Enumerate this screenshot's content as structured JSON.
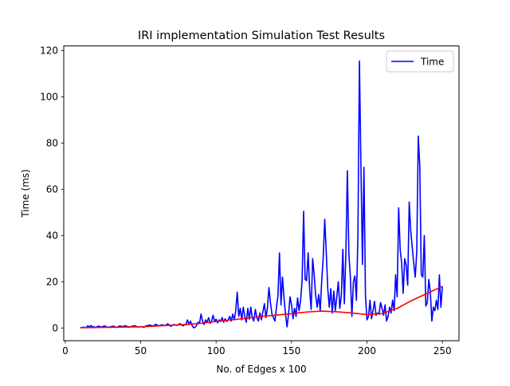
{
  "chart_data": {
    "type": "line",
    "title": "IRI implementation Simulation Test Results",
    "xlabel": "No. of Edges  x 100",
    "ylabel": "Time (ms)",
    "xlim": [
      -1,
      261
    ],
    "ylim": [
      -5.5,
      122
    ],
    "xticks": [
      0,
      50,
      100,
      150,
      200,
      250
    ],
    "yticks": [
      0,
      20,
      40,
      60,
      80,
      100,
      120
    ],
    "grid": false,
    "legend": {
      "placement": "top-right",
      "entries": [
        "Time"
      ]
    },
    "series": [
      {
        "name": "Time",
        "color": "#0000ff",
        "points": [
          [
            10,
            0.1
          ],
          [
            12,
            0.3
          ],
          [
            14,
            0.2
          ],
          [
            15,
            1.0
          ],
          [
            16,
            0.3
          ],
          [
            17,
            1.1
          ],
          [
            18,
            0.4
          ],
          [
            19,
            0.6
          ],
          [
            20,
            0.2
          ],
          [
            22,
            0.8
          ],
          [
            24,
            0.4
          ],
          [
            26,
            0.9
          ],
          [
            28,
            0.3
          ],
          [
            30,
            0.5
          ],
          [
            32,
            0.8
          ],
          [
            34,
            0.2
          ],
          [
            36,
            0.9
          ],
          [
            38,
            0.6
          ],
          [
            40,
            1.0
          ],
          [
            42,
            0.3
          ],
          [
            44,
            0.7
          ],
          [
            46,
            1.0
          ],
          [
            48,
            0.4
          ],
          [
            50,
            0.6
          ],
          [
            52,
            0.3
          ],
          [
            54,
            1.0
          ],
          [
            56,
            1.3
          ],
          [
            58,
            0.8
          ],
          [
            60,
            1.6
          ],
          [
            62,
            0.9
          ],
          [
            64,
            1.4
          ],
          [
            66,
            1.0
          ],
          [
            68,
            1.8
          ],
          [
            70,
            0.7
          ],
          [
            72,
            1.5
          ],
          [
            74,
            1.1
          ],
          [
            76,
            1.9
          ],
          [
            78,
            0.9
          ],
          [
            80,
            1.7
          ],
          [
            81,
            3.5
          ],
          [
            82,
            1.5
          ],
          [
            83,
            3.0
          ],
          [
            84,
            1.2
          ],
          [
            85,
            0.1
          ],
          [
            86,
            0.3
          ],
          [
            87,
            1.0
          ],
          [
            88,
            2.5
          ],
          [
            89,
            2.0
          ],
          [
            90,
            6.0
          ],
          [
            91,
            3.0
          ],
          [
            92,
            1.5
          ],
          [
            93,
            3.5
          ],
          [
            94,
            2.5
          ],
          [
            95,
            4.5
          ],
          [
            96,
            2.0
          ],
          [
            97,
            3.0
          ],
          [
            98,
            5.5
          ],
          [
            99,
            2.8
          ],
          [
            100,
            3.8
          ],
          [
            101,
            2.2
          ],
          [
            102,
            3.5
          ],
          [
            103,
            2.8
          ],
          [
            104,
            4.5
          ],
          [
            105,
            2.5
          ],
          [
            106,
            4.0
          ],
          [
            107,
            2.8
          ],
          [
            108,
            3.5
          ],
          [
            109,
            5.0
          ],
          [
            110,
            3.0
          ],
          [
            111,
            6.0
          ],
          [
            112,
            3.5
          ],
          [
            113,
            7.5
          ],
          [
            114,
            15.5
          ],
          [
            115,
            5.0
          ],
          [
            116,
            8.5
          ],
          [
            117,
            3.5
          ],
          [
            118,
            9.0
          ],
          [
            119,
            5.0
          ],
          [
            120,
            2.5
          ],
          [
            121,
            8.5
          ],
          [
            122,
            3.8
          ],
          [
            123,
            9.0
          ],
          [
            124,
            4.5
          ],
          [
            125,
            3.0
          ],
          [
            126,
            8.0
          ],
          [
            127,
            4.5
          ],
          [
            128,
            3.0
          ],
          [
            129,
            6.5
          ],
          [
            130,
            3.5
          ],
          [
            131,
            7.0
          ],
          [
            132,
            10.5
          ],
          [
            133,
            4.5
          ],
          [
            134,
            8.5
          ],
          [
            135,
            17.5
          ],
          [
            136,
            11.0
          ],
          [
            137,
            6.0
          ],
          [
            138,
            4.5
          ],
          [
            139,
            3.0
          ],
          [
            140,
            9.0
          ],
          [
            141,
            14.0
          ],
          [
            142,
            32.5
          ],
          [
            143,
            10.0
          ],
          [
            144,
            22.0
          ],
          [
            145,
            13.0
          ],
          [
            146,
            6.0
          ],
          [
            147,
            0.5
          ],
          [
            148,
            6.0
          ],
          [
            149,
            13.5
          ],
          [
            150,
            10.0
          ],
          [
            151,
            4.0
          ],
          [
            152,
            8.5
          ],
          [
            153,
            5.0
          ],
          [
            154,
            13.0
          ],
          [
            155,
            7.5
          ],
          [
            156,
            12.0
          ],
          [
            157,
            20.5
          ],
          [
            158,
            50.5
          ],
          [
            159,
            21.0
          ],
          [
            160,
            20.5
          ],
          [
            161,
            32.5
          ],
          [
            162,
            16.5
          ],
          [
            163,
            8.0
          ],
          [
            164,
            30.0
          ],
          [
            165,
            23.0
          ],
          [
            166,
            14.0
          ],
          [
            167,
            9.0
          ],
          [
            168,
            14.5
          ],
          [
            169,
            7.5
          ],
          [
            170,
            20.5
          ],
          [
            171,
            30.5
          ],
          [
            172,
            47.0
          ],
          [
            173,
            33.0
          ],
          [
            174,
            17.0
          ],
          [
            175,
            9.0
          ],
          [
            176,
            17.0
          ],
          [
            177,
            6.5
          ],
          [
            178,
            16.0
          ],
          [
            179,
            7.5
          ],
          [
            180,
            13.5
          ],
          [
            181,
            20.0
          ],
          [
            182,
            8.5
          ],
          [
            183,
            14.0
          ],
          [
            184,
            34.0
          ],
          [
            185,
            10.5
          ],
          [
            186,
            32.0
          ],
          [
            187,
            68.0
          ],
          [
            188,
            32.0
          ],
          [
            189,
            22.0
          ],
          [
            190,
            5.0
          ],
          [
            191,
            20.0
          ],
          [
            192,
            22.5
          ],
          [
            193,
            12.0
          ],
          [
            194,
            40.0
          ],
          [
            195,
            115.5
          ],
          [
            196,
            70.0
          ],
          [
            197,
            27.5
          ],
          [
            198,
            69.5
          ],
          [
            199,
            14.0
          ],
          [
            200,
            3.5
          ],
          [
            201,
            5.0
          ],
          [
            202,
            12.0
          ],
          [
            203,
            4.0
          ],
          [
            204,
            7.5
          ],
          [
            205,
            11.5
          ],
          [
            206,
            5.5
          ],
          [
            207,
            6.5
          ],
          [
            208,
            6.0
          ],
          [
            209,
            11.0
          ],
          [
            210,
            8.5
          ],
          [
            211,
            5.5
          ],
          [
            212,
            10.0
          ],
          [
            213,
            3.0
          ],
          [
            214,
            5.0
          ],
          [
            215,
            9.0
          ],
          [
            216,
            6.5
          ],
          [
            217,
            12.0
          ],
          [
            218,
            7.5
          ],
          [
            219,
            23.0
          ],
          [
            220,
            13.5
          ],
          [
            221,
            52.0
          ],
          [
            222,
            34.0
          ],
          [
            223,
            28.0
          ],
          [
            224,
            15.0
          ],
          [
            225,
            30.0
          ],
          [
            226,
            27.0
          ],
          [
            227,
            18.5
          ],
          [
            228,
            54.5
          ],
          [
            229,
            42.0
          ],
          [
            230,
            35.0
          ],
          [
            231,
            28.0
          ],
          [
            232,
            22.0
          ],
          [
            233,
            33.0
          ],
          [
            234,
            83.0
          ],
          [
            235,
            70.0
          ],
          [
            236,
            23.0
          ],
          [
            237,
            22.0
          ],
          [
            238,
            40.0
          ],
          [
            239,
            9.5
          ],
          [
            240,
            11.0
          ],
          [
            241,
            21.0
          ],
          [
            242,
            15.5
          ],
          [
            243,
            3.0
          ],
          [
            244,
            9.0
          ],
          [
            245,
            7.5
          ],
          [
            246,
            12.0
          ],
          [
            247,
            8.0
          ],
          [
            248,
            23.0
          ],
          [
            249,
            9.0
          ],
          [
            250,
            18.0
          ]
        ]
      },
      {
        "color": "#ff0000",
        "points": [
          [
            10,
            0.1
          ],
          [
            20,
            0.2
          ],
          [
            30,
            0.3
          ],
          [
            40,
            0.4
          ],
          [
            50,
            0.5
          ],
          [
            60,
            0.8
          ],
          [
            70,
            1.2
          ],
          [
            80,
            1.5
          ],
          [
            90,
            2.0
          ],
          [
            100,
            2.8
          ],
          [
            110,
            3.5
          ],
          [
            120,
            4.2
          ],
          [
            130,
            5.0
          ],
          [
            140,
            5.6
          ],
          [
            150,
            6.2
          ],
          [
            160,
            6.9
          ],
          [
            170,
            7.3
          ],
          [
            180,
            7.0
          ],
          [
            190,
            6.5
          ],
          [
            200,
            5.8
          ],
          [
            210,
            6.2
          ],
          [
            220,
            8.5
          ],
          [
            230,
            12.0
          ],
          [
            240,
            15.0
          ],
          [
            250,
            18.0
          ]
        ]
      }
    ]
  }
}
